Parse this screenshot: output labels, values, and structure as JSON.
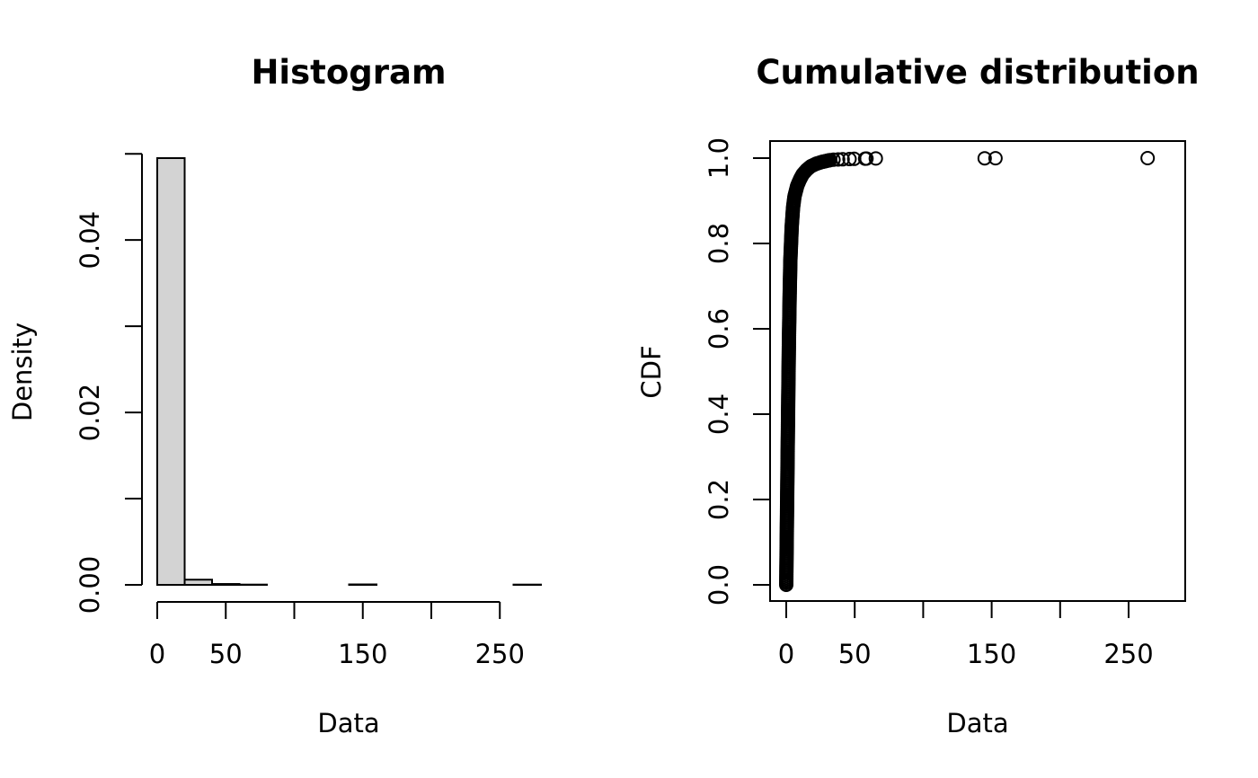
{
  "colors": {
    "bar_fill": "#d3d3d3",
    "stroke": "#000000",
    "background": "#ffffff"
  },
  "chart_data": [
    {
      "type": "bar",
      "title": "Histogram",
      "xlabel": "Data",
      "ylabel": "Density",
      "bin_width": 20,
      "bins": [
        {
          "start": 0,
          "end": 20,
          "value": 0.0495
        },
        {
          "start": 20,
          "end": 40,
          "value": 0.0006
        },
        {
          "start": 40,
          "end": 60,
          "value": 0.0001
        },
        {
          "start": 60,
          "end": 80,
          "value": 3e-05
        },
        {
          "start": 80,
          "end": 100,
          "value": 0
        },
        {
          "start": 100,
          "end": 120,
          "value": 0
        },
        {
          "start": 120,
          "end": 140,
          "value": 0
        },
        {
          "start": 140,
          "end": 160,
          "value": 5e-05
        },
        {
          "start": 160,
          "end": 180,
          "value": 0
        },
        {
          "start": 180,
          "end": 200,
          "value": 0
        },
        {
          "start": 200,
          "end": 220,
          "value": 0
        },
        {
          "start": 220,
          "end": 240,
          "value": 0
        },
        {
          "start": 240,
          "end": 260,
          "value": 0
        },
        {
          "start": 260,
          "end": 280,
          "value": 3e-05
        }
      ],
      "xlim": [
        0,
        280
      ],
      "ylim": [
        0,
        0.0495
      ],
      "x_ticks": [
        0,
        50,
        100,
        150,
        200,
        250
      ],
      "x_tick_labels": [
        "0",
        "50",
        "",
        "150",
        "",
        "250"
      ],
      "y_ticks": [
        0,
        0.01,
        0.02,
        0.03,
        0.04,
        0.05
      ],
      "y_tick_labels": [
        "0.00",
        "",
        "0.02",
        "",
        "0.04",
        ""
      ],
      "grid": false
    },
    {
      "type": "scatter",
      "title": "Cumulative distribution",
      "xlabel": "Data",
      "ylabel": "CDF",
      "marker": "open-circle",
      "points": [
        {
          "x": 34.5,
          "y": 0.9963
        },
        {
          "x": 37.9,
          "y": 0.9968
        },
        {
          "x": 41.2,
          "y": 0.9973
        },
        {
          "x": 46.2,
          "y": 0.9978
        },
        {
          "x": 49.6,
          "y": 0.9983
        },
        {
          "x": 57.6,
          "y": 0.9987
        },
        {
          "x": 58.6,
          "y": 0.999
        },
        {
          "x": 65.4,
          "y": 0.9993
        },
        {
          "x": 144.9,
          "y": 0.9996
        },
        {
          "x": 152.8,
          "y": 0.9998
        },
        {
          "x": 263.9,
          "y": 1.0
        }
      ],
      "dense_curve": {
        "x": [
          0,
          0.5,
          1,
          1.5,
          2,
          2.5,
          3,
          4,
          5,
          6,
          8,
          10,
          12,
          15,
          18,
          22,
          26,
          30,
          33
        ],
        "y": [
          0,
          0.15,
          0.3,
          0.45,
          0.58,
          0.68,
          0.76,
          0.84,
          0.885,
          0.91,
          0.935,
          0.95,
          0.962,
          0.973,
          0.981,
          0.987,
          0.991,
          0.994,
          0.996
        ]
      },
      "xlim": [
        -11,
        292
      ],
      "ylim": [
        -0.04,
        1.04
      ],
      "x_ticks": [
        0,
        50,
        100,
        150,
        200,
        250
      ],
      "x_tick_labels": [
        "0",
        "50",
        "",
        "150",
        "",
        "250"
      ],
      "y_ticks": [
        0,
        0.2,
        0.4,
        0.6,
        0.8,
        1.0
      ],
      "y_tick_labels": [
        "0.0",
        "0.2",
        "0.4",
        "0.6",
        "0.8",
        "1.0"
      ],
      "grid": false,
      "box": true
    }
  ]
}
